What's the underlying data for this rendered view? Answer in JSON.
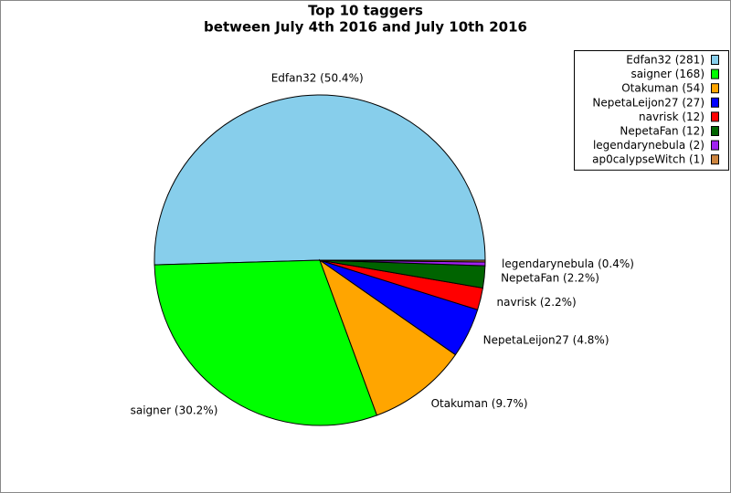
{
  "chart_data": {
    "type": "pie",
    "title": "Top 10 taggers",
    "subtitle": "between July 4th 2016 and July 10th 2016",
    "categories": [
      "Edfan32 (281)",
      "saigner (168)",
      "Otakuman (54)",
      "NepetaLeijon27 (27)",
      "navrisk (12)",
      "NepetaFan (12)",
      "legendarynebula (2)",
      "ap0calypseWitch (1)"
    ],
    "values": [
      281,
      168,
      54,
      27,
      12,
      12,
      2,
      1
    ],
    "value_labels": [
      "Edfan32 (50.4%)",
      "saigner (30.2%)",
      "Otakuman (9.7%)",
      "NepetaLeijon27 (4.8%)",
      "navrisk (2.2%)",
      "NepetaFan (2.2%)",
      "legendarynebula (0.4%)",
      null
    ],
    "colors": [
      "#87ceeb",
      "#00ff00",
      "#ffa500",
      "#0000ff",
      "#ff0000",
      "#006400",
      "#a020f0",
      "#cd853f"
    ],
    "legend": "top-right"
  }
}
